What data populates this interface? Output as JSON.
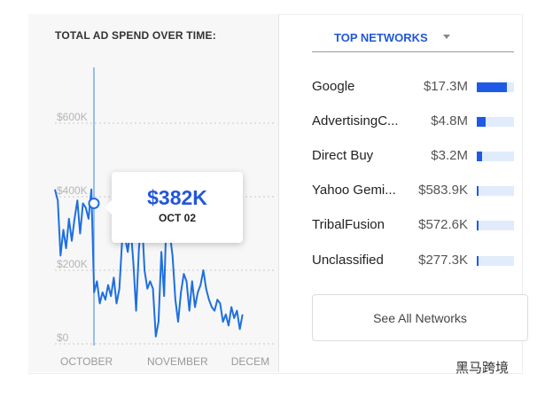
{
  "chart_data": {
    "type": "line",
    "title": "TOTAL AD SPEND OVER TIME:",
    "y_ticks": [
      "$0",
      "$200K",
      "$400K",
      "$600K"
    ],
    "x_ticks": [
      {
        "label": "OCTOBER",
        "day": 0
      },
      {
        "label": "NOVEMBER",
        "day": 31
      },
      {
        "label": "DECEM",
        "day": 61
      }
    ],
    "ylim": [
      0,
      700
    ],
    "grid": true,
    "line_color": "#1e6fe0",
    "series": [
      {
        "values": [
          420,
          390,
          240,
          310,
          260,
          340,
          280,
          340,
          390,
          300,
          382,
          370,
          340,
          420,
          140,
          170,
          110,
          140,
          120,
          160,
          130,
          180,
          110,
          150,
          280,
          290,
          250,
          320,
          220,
          90,
          260,
          350,
          200,
          150,
          170,
          150,
          20,
          60,
          250,
          130,
          400,
          300,
          240,
          120,
          60,
          140,
          190,
          170,
          90,
          170,
          100,
          140,
          160,
          200,
          150,
          120,
          100,
          90,
          120,
          110,
          60,
          80,
          50,
          100,
          70,
          90,
          40,
          80
        ]
      }
    ]
  },
  "tooltip": {
    "value": "$382K",
    "date": "OCT 02"
  },
  "networks": {
    "header": "TOP NETWORKS",
    "rows": [
      {
        "name": "Google",
        "value": "$17.3M",
        "share": 0.82
      },
      {
        "name": "AdvertisingC...",
        "value": "$4.8M",
        "share": 0.23
      },
      {
        "name": "Direct Buy",
        "value": "$3.2M",
        "share": 0.15
      },
      {
        "name": "Yahoo Gemi...",
        "value": "$583.9K",
        "share": 0.04
      },
      {
        "name": "TribalFusion",
        "value": "$572.6K",
        "share": 0.04
      },
      {
        "name": "Unclassified",
        "value": "$277.3K",
        "share": 0.03
      }
    ],
    "see_all": "See All Networks"
  },
  "watermark": "黑马跨境",
  "colors": {
    "accent": "#2357d9",
    "bar_fill": "#1f5ae6",
    "bar_track": "#e0ecfb"
  }
}
